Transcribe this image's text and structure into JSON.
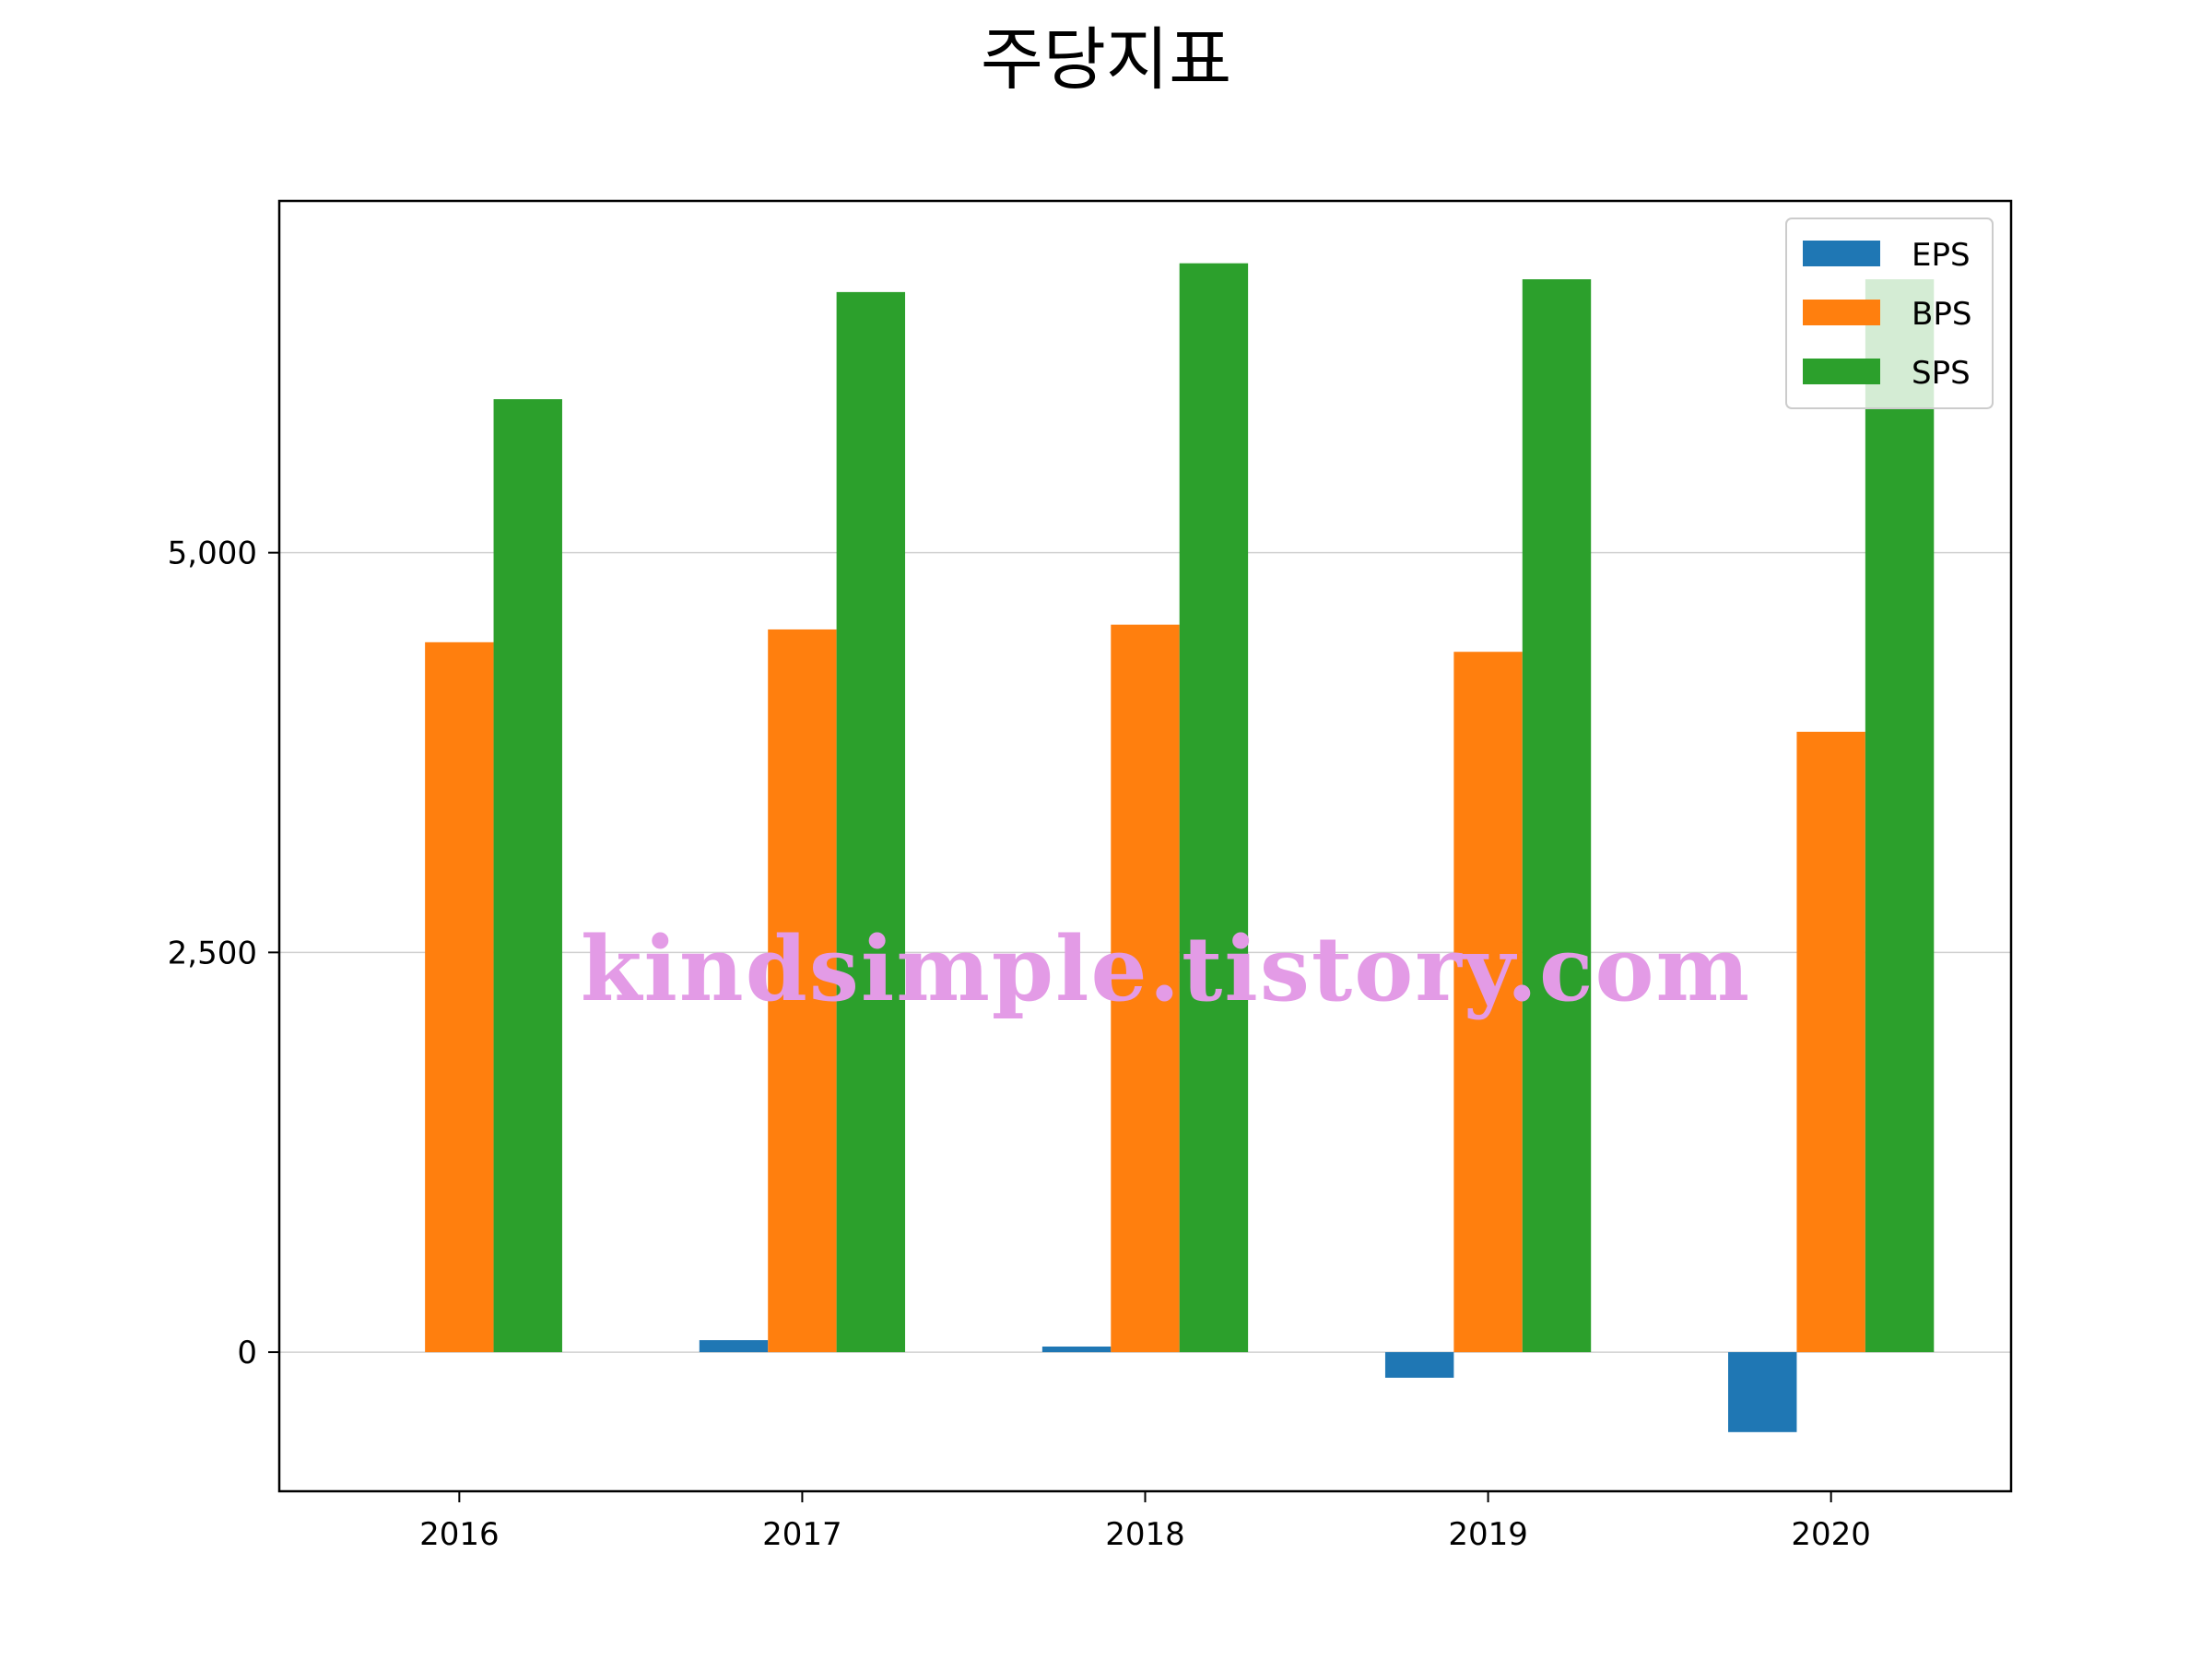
{
  "chart_data": {
    "type": "bar",
    "title": "주당지표",
    "xlabel": "",
    "ylabel": "",
    "categories": [
      "2016",
      "2017",
      "2018",
      "2019",
      "2020"
    ],
    "series": [
      {
        "name": "EPS",
        "color": "#1f77b4",
        "values": [
          0,
          75,
          35,
          -160,
          -500
        ]
      },
      {
        "name": "BPS",
        "color": "#ff7f0e",
        "values": [
          4440,
          4520,
          4550,
          4380,
          3880
        ]
      },
      {
        "name": "SPS",
        "color": "#2ca02c",
        "values": [
          5960,
          6630,
          6810,
          6710,
          6710
        ]
      }
    ],
    "yticks": [
      0,
      2500,
      5000
    ],
    "ytick_labels": [
      "0",
      "2,500",
      "5,000"
    ],
    "ylim": [
      -870,
      7200
    ],
    "grid": "y",
    "legend_position": "top-right"
  },
  "watermark": "kindsimple.tistory.com"
}
